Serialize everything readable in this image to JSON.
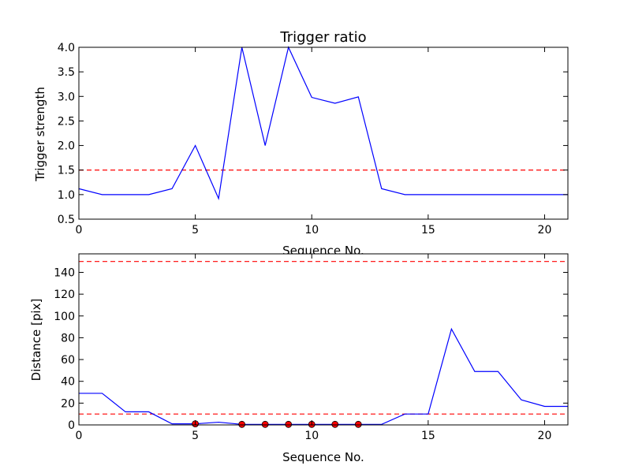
{
  "chart_data": [
    {
      "type": "line",
      "title": "Trigger ratio",
      "xlabel": "Sequence No.",
      "ylabel": "Trigger strength",
      "xlim": [
        0,
        21
      ],
      "ylim": [
        0.5,
        4.0
      ],
      "xticks": [
        0,
        5,
        10,
        15,
        20
      ],
      "yticks": [
        "0.5",
        "1.0",
        "1.5",
        "2.0",
        "2.5",
        "3.0",
        "3.5",
        "4.0"
      ],
      "grid": false,
      "series": [
        {
          "color": "#0000ff",
          "x": [
            0,
            1,
            2,
            3,
            4,
            5,
            6,
            7,
            8,
            9,
            10,
            11,
            12,
            13,
            14,
            15,
            16,
            17,
            18,
            19,
            20,
            21
          ],
          "y": [
            1.12,
            1.0,
            1.0,
            1.0,
            1.12,
            2.0,
            0.92,
            4.0,
            2.0,
            4.0,
            2.98,
            2.86,
            2.99,
            1.12,
            1.0,
            1.0,
            1.0,
            1.0,
            1.0,
            1.0,
            1.0,
            1.0
          ]
        }
      ],
      "hlines": [
        {
          "y": 1.5,
          "color": "#ff0000",
          "style": "dashed"
        }
      ]
    },
    {
      "type": "line",
      "title": "",
      "xlabel": "Sequence No.",
      "ylabel": "Distance [pix]",
      "xlim": [
        0,
        21
      ],
      "ylim": [
        0,
        157
      ],
      "xticks": [
        0,
        5,
        10,
        15,
        20
      ],
      "yticks": [
        "0",
        "20",
        "40",
        "60",
        "80",
        "100",
        "120",
        "140"
      ],
      "grid": false,
      "series": [
        {
          "color": "#0000ff",
          "x": [
            0,
            1,
            2,
            3,
            4,
            5,
            6,
            7,
            8,
            9,
            10,
            11,
            12,
            13,
            14,
            15,
            16,
            17,
            18,
            19,
            20,
            21
          ],
          "y": [
            29,
            29,
            12,
            12,
            1,
            1,
            2.5,
            0.5,
            0.5,
            0.5,
            0.5,
            0.5,
            0.5,
            0.5,
            10,
            10,
            88,
            49,
            49,
            23,
            17,
            17
          ]
        }
      ],
      "markers": {
        "color": "#ff0000",
        "x": [
          5,
          7,
          8,
          9,
          10,
          11,
          12
        ],
        "y": [
          1,
          0.5,
          0.5,
          0.5,
          0.5,
          0.5,
          0.5
        ]
      },
      "hlines": [
        {
          "y": 150,
          "color": "#ff0000",
          "style": "dashed"
        },
        {
          "y": 10,
          "color": "#ff0000",
          "style": "dashed"
        }
      ]
    }
  ]
}
